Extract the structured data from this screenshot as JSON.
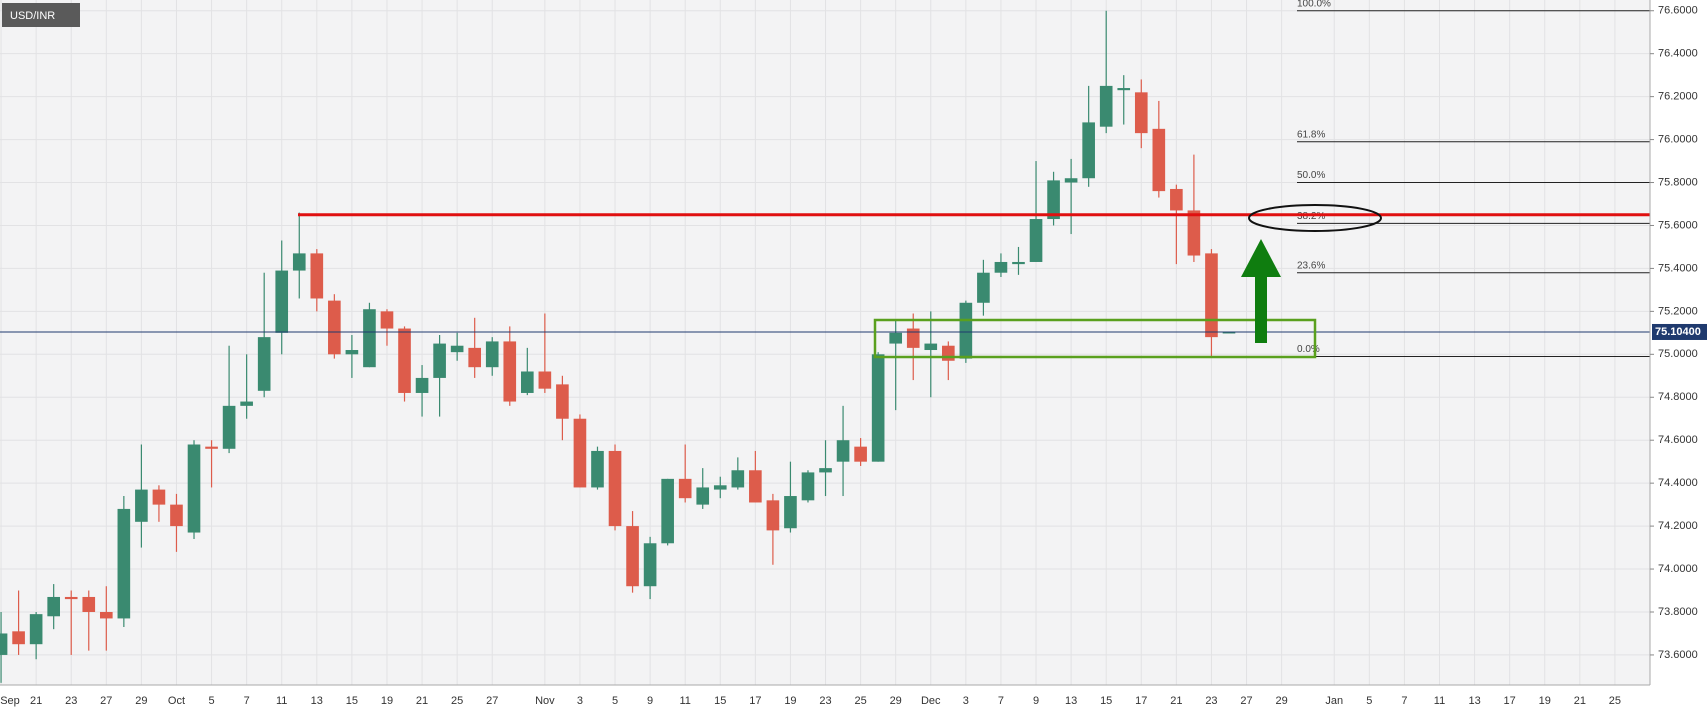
{
  "chart_data": {
    "type": "candlestick",
    "symbol": "USD/INR",
    "x": [
      0,
      1,
      2,
      3,
      4,
      5,
      6,
      7,
      8,
      9,
      10,
      11,
      12,
      13,
      14,
      15,
      16,
      17,
      18,
      19,
      20,
      21,
      22,
      23,
      24,
      25,
      26,
      27,
      28,
      29,
      30,
      31,
      32,
      33,
      34,
      35,
      36,
      37,
      38,
      39,
      40,
      41,
      42,
      43,
      44,
      45,
      46,
      47,
      48,
      49,
      50,
      51,
      52,
      53,
      54,
      55,
      56,
      57,
      58,
      59,
      60,
      61,
      62,
      63,
      64,
      65,
      66,
      67,
      68,
      69,
      70
    ],
    "open": [
      73.6,
      73.71,
      73.65,
      73.78,
      73.87,
      73.87,
      73.8,
      73.77,
      74.22,
      74.37,
      74.3,
      74.17,
      74.57,
      74.56,
      74.76,
      74.83,
      75.1,
      75.39,
      75.47,
      75.25,
      75.0,
      74.94,
      75.2,
      75.12,
      74.82,
      74.89,
      75.01,
      75.03,
      74.94,
      75.06,
      74.82,
      74.92,
      74.86,
      74.7,
      74.38,
      74.55,
      74.2,
      73.92,
      74.12,
      74.42,
      74.3,
      74.37,
      74.38,
      74.46,
      74.32,
      74.19,
      74.32,
      74.45,
      74.5,
      74.57,
      74.5,
      75.05,
      75.12,
      75.02,
      75.04,
      74.98,
      75.24,
      75.38,
      75.42,
      75.43,
      75.63,
      75.8,
      75.82,
      76.06,
      76.23,
      76.22,
      76.05,
      75.77,
      75.67,
      75.47,
      75.1
    ],
    "high": [
      73.8,
      73.9,
      73.8,
      73.93,
      73.9,
      73.9,
      73.92,
      74.34,
      74.58,
      74.39,
      74.35,
      74.6,
      74.6,
      75.04,
      75.0,
      75.38,
      75.53,
      75.66,
      75.49,
      75.28,
      75.09,
      75.24,
      75.21,
      75.13,
      74.95,
      75.09,
      75.1,
      75.17,
      75.08,
      75.13,
      75.03,
      75.19,
      74.9,
      74.72,
      74.57,
      74.58,
      74.27,
      74.15,
      74.42,
      74.58,
      74.47,
      74.43,
      74.52,
      74.55,
      74.35,
      74.5,
      74.46,
      74.6,
      74.76,
      74.61,
      75.01,
      75.16,
      75.19,
      75.2,
      75.06,
      75.25,
      75.44,
      75.47,
      75.5,
      75.9,
      75.85,
      75.91,
      76.25,
      76.6,
      76.3,
      76.28,
      76.18,
      75.79,
      75.93,
      75.49,
      75.104
    ],
    "low": [
      73.47,
      73.6,
      73.58,
      73.72,
      73.6,
      73.62,
      73.62,
      73.73,
      74.1,
      74.22,
      74.08,
      74.14,
      74.38,
      74.54,
      74.7,
      74.8,
      75.0,
      75.26,
      75.2,
      74.98,
      74.89,
      74.94,
      75.04,
      74.78,
      74.71,
      74.71,
      74.97,
      74.89,
      74.9,
      74.76,
      74.81,
      74.82,
      74.6,
      74.38,
      74.37,
      74.18,
      73.89,
      73.86,
      74.11,
      74.31,
      74.28,
      74.33,
      74.37,
      74.31,
      74.02,
      74.17,
      74.31,
      74.34,
      74.34,
      74.48,
      74.5,
      74.74,
      74.88,
      74.8,
      74.88,
      74.96,
      75.18,
      75.36,
      75.37,
      75.43,
      75.6,
      75.56,
      75.78,
      76.03,
      76.07,
      75.96,
      75.73,
      75.42,
      75.43,
      74.99,
      75.1
    ],
    "close": [
      73.7,
      73.65,
      73.79,
      73.87,
      73.86,
      73.8,
      73.77,
      74.28,
      74.37,
      74.3,
      74.2,
      74.58,
      74.56,
      74.76,
      74.78,
      75.08,
      75.39,
      75.47,
      75.26,
      75.0,
      75.02,
      75.21,
      75.12,
      74.82,
      74.89,
      75.05,
      75.04,
      74.94,
      75.06,
      74.78,
      74.92,
      74.84,
      74.7,
      74.38,
      74.55,
      74.2,
      73.92,
      74.12,
      74.42,
      74.33,
      74.38,
      74.39,
      74.46,
      74.31,
      74.18,
      74.34,
      74.45,
      74.47,
      74.6,
      74.5,
      75.0,
      75.1,
      75.03,
      75.05,
      74.97,
      75.24,
      75.38,
      75.43,
      75.43,
      75.63,
      75.81,
      75.82,
      76.08,
      76.25,
      76.24,
      76.03,
      75.76,
      75.67,
      75.46,
      75.08,
      75.104
    ],
    "up_color": "#3a8a70",
    "down_color": "#dd5c4b",
    "xlim": [
      -0.06,
      94.0
    ],
    "ylim": [
      73.46,
      76.65
    ],
    "grid": true,
    "xticks": [
      {
        "value": 0,
        "label": "Sep"
      },
      {
        "value": 2,
        "label": "21"
      },
      {
        "value": 4,
        "label": "23"
      },
      {
        "value": 6,
        "label": "27"
      },
      {
        "value": 8,
        "label": "29"
      },
      {
        "value": 10,
        "label": "Oct"
      },
      {
        "value": 12,
        "label": "5"
      },
      {
        "value": 14,
        "label": "7"
      },
      {
        "value": 16,
        "label": "11"
      },
      {
        "value": 18,
        "label": "13"
      },
      {
        "value": 20,
        "label": "15"
      },
      {
        "value": 22,
        "label": "19"
      },
      {
        "value": 24,
        "label": "21"
      },
      {
        "value": 26,
        "label": "25"
      },
      {
        "value": 28,
        "label": "27"
      },
      {
        "value": 31,
        "label": "Nov"
      },
      {
        "value": 33,
        "label": "3"
      },
      {
        "value": 35,
        "label": "5"
      },
      {
        "value": 37,
        "label": "9"
      },
      {
        "value": 39,
        "label": "11"
      },
      {
        "value": 41,
        "label": "15"
      },
      {
        "value": 43,
        "label": "17"
      },
      {
        "value": 45,
        "label": "19"
      },
      {
        "value": 47,
        "label": "23"
      },
      {
        "value": 49,
        "label": "25"
      },
      {
        "value": 51,
        "label": "29"
      },
      {
        "value": 53,
        "label": "Dec"
      },
      {
        "value": 55,
        "label": "3"
      },
      {
        "value": 57,
        "label": "7"
      },
      {
        "value": 59,
        "label": "9"
      },
      {
        "value": 61,
        "label": "13"
      },
      {
        "value": 63,
        "label": "15"
      },
      {
        "value": 65,
        "label": "17"
      },
      {
        "value": 67,
        "label": "21"
      },
      {
        "value": 69,
        "label": "23"
      },
      {
        "value": 71,
        "label": "27"
      },
      {
        "value": 73,
        "label": "29"
      },
      {
        "value": 76,
        "label": "Jan"
      },
      {
        "value": 78,
        "label": "5"
      },
      {
        "value": 80,
        "label": "7"
      },
      {
        "value": 82,
        "label": "11"
      },
      {
        "value": 84,
        "label": "13"
      },
      {
        "value": 86,
        "label": "17"
      },
      {
        "value": 88,
        "label": "19"
      },
      {
        "value": 90,
        "label": "21"
      },
      {
        "value": 92,
        "label": "25"
      }
    ],
    "yticks": [
      {
        "value": 73.6,
        "label": "73.6000"
      },
      {
        "value": 73.8,
        "label": "73.8000"
      },
      {
        "value": 74.0,
        "label": "74.0000"
      },
      {
        "value": 74.2,
        "label": "74.2000"
      },
      {
        "value": 74.4,
        "label": "74.4000"
      },
      {
        "value": 74.6,
        "label": "74.6000"
      },
      {
        "value": 74.8,
        "label": "74.8000"
      },
      {
        "value": 75.0,
        "label": "75.0000"
      },
      {
        "value": 75.2,
        "label": "75.2000"
      },
      {
        "value": 75.4,
        "label": "75.4000"
      },
      {
        "value": 75.6,
        "label": "75.6000"
      },
      {
        "value": 75.8,
        "label": "75.8000"
      },
      {
        "value": 76.0,
        "label": "76.0000"
      },
      {
        "value": 76.2,
        "label": "76.2000"
      },
      {
        "value": 76.4,
        "label": "76.4000"
      },
      {
        "value": 76.6,
        "label": "76.6000"
      }
    ],
    "fib_levels": [
      {
        "label": "100.0%",
        "price": 76.6
      },
      {
        "label": "61.8%",
        "price": 75.99
      },
      {
        "label": "50.0%",
        "price": 75.8
      },
      {
        "label": "38.2%",
        "price": 75.61
      },
      {
        "label": "23.6%",
        "price": 75.38
      },
      {
        "label": "0.0%",
        "price": 74.99
      }
    ],
    "resistance": 75.65,
    "last_price": {
      "value": 75.104,
      "label": "75.10400"
    }
  }
}
